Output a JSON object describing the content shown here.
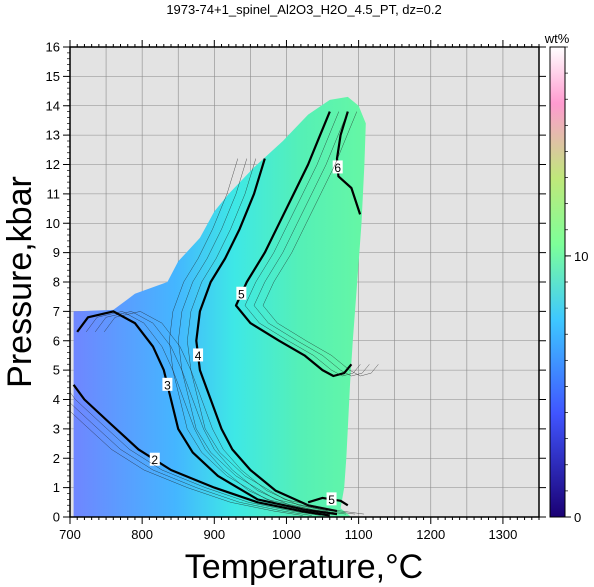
{
  "chart_data": {
    "type": "heatmap",
    "title": "1973-74+1_spinel_Al2O3_H2O_4.5_PT, dz=0.2",
    "xlabel": "Temperature,°C",
    "ylabel": "Pressure,kbar",
    "xlim": [
      700,
      1350
    ],
    "ylim": [
      0,
      16
    ],
    "x_ticks": [
      "700",
      "800",
      "900",
      "1000",
      "1100",
      "1200",
      "1300"
    ],
    "y_ticks": [
      "0",
      "1",
      "2",
      "3",
      "4",
      "5",
      "6",
      "7",
      "8",
      "9",
      "10",
      "11",
      "12",
      "13",
      "14",
      "15",
      "16"
    ],
    "grid": true,
    "background_color": "#e3e3e3",
    "colorbar": {
      "label": "wt%",
      "range": [
        0,
        18
      ],
      "ticks": [
        "0",
        "10"
      ],
      "placement": "right",
      "colors": [
        "#1a0073",
        "#4055ff",
        "#3ec8ff",
        "#7dff99",
        "#bfe87a",
        "#ff9bd0",
        "#ffffff"
      ]
    },
    "field_boundary": [
      [
        705,
        0
      ],
      [
        705,
        7.0
      ],
      [
        760,
        7.05
      ],
      [
        790,
        7.6
      ],
      [
        835,
        8.0
      ],
      [
        850,
        8.7
      ],
      [
        880,
        9.5
      ],
      [
        900,
        10.4
      ],
      [
        920,
        11.0
      ],
      [
        955,
        11.9
      ],
      [
        995,
        12.8
      ],
      [
        1030,
        13.7
      ],
      [
        1060,
        14.2
      ],
      [
        1085,
        14.3
      ],
      [
        1100,
        14.0
      ],
      [
        1110,
        13.4
      ],
      [
        1108,
        12.0
      ],
      [
        1104,
        10.0
      ],
      [
        1098,
        8.0
      ],
      [
        1092,
        6.0
      ],
      [
        1088,
        4.5
      ],
      [
        1085,
        3.0
      ],
      [
        1083,
        2.0
      ],
      [
        1080,
        1.0
      ],
      [
        1075,
        0.3
      ],
      [
        1090,
        0
      ]
    ],
    "contours": [
      {
        "level": 2,
        "label": "2",
        "points": [
          [
            705,
            4.5
          ],
          [
            720,
            4.0
          ],
          [
            755,
            3.2
          ],
          [
            795,
            2.3
          ],
          [
            840,
            1.6
          ],
          [
            900,
            1.0
          ],
          [
            960,
            0.5
          ],
          [
            1020,
            0.2
          ],
          [
            1060,
            0.05
          ]
        ]
      },
      {
        "level": 3,
        "label": "3",
        "points": [
          [
            710,
            6.3
          ],
          [
            725,
            6.8
          ],
          [
            760,
            7.0
          ],
          [
            790,
            6.6
          ],
          [
            815,
            5.8
          ],
          [
            830,
            5.0
          ],
          [
            840,
            4.0
          ],
          [
            850,
            3.0
          ],
          [
            870,
            2.2
          ],
          [
            905,
            1.4
          ],
          [
            960,
            0.6
          ],
          [
            1025,
            0.25
          ],
          [
            1070,
            0.1
          ]
        ]
      },
      {
        "level": 4,
        "label": "4",
        "points": [
          [
            970,
            12.2
          ],
          [
            955,
            11.0
          ],
          [
            935,
            9.8
          ],
          [
            915,
            8.8
          ],
          [
            895,
            8.0
          ],
          [
            880,
            7.0
          ],
          [
            875,
            6.0
          ],
          [
            880,
            5.0
          ],
          [
            895,
            4.0
          ],
          [
            910,
            3.0
          ],
          [
            925,
            2.3
          ],
          [
            950,
            1.6
          ],
          [
            985,
            0.9
          ],
          [
            1030,
            0.4
          ],
          [
            1070,
            0.2
          ]
        ]
      },
      {
        "level": 5,
        "label": "5",
        "points": [
          [
            1060,
            13.8
          ],
          [
            1045,
            12.9
          ],
          [
            1030,
            12.0
          ],
          [
            1010,
            11.0
          ],
          [
            990,
            10.0
          ],
          [
            970,
            9.0
          ],
          [
            945,
            8.0
          ],
          [
            930,
            7.2
          ],
          [
            950,
            6.6
          ],
          [
            990,
            6.0
          ],
          [
            1025,
            5.5
          ],
          [
            1050,
            5.0
          ],
          [
            1065,
            4.8
          ],
          [
            1080,
            4.9
          ],
          [
            1090,
            5.2
          ]
        ]
      },
      {
        "level": 5,
        "label": "5",
        "points": [
          [
            1030,
            0.5
          ],
          [
            1050,
            0.65
          ],
          [
            1075,
            0.55
          ],
          [
            1085,
            0.4
          ]
        ]
      },
      {
        "level": 6,
        "label": "6",
        "points": [
          [
            1085,
            13.8
          ],
          [
            1075,
            13.0
          ],
          [
            1070,
            12.2
          ],
          [
            1072,
            11.6
          ],
          [
            1090,
            11.2
          ],
          [
            1102,
            10.3
          ]
        ]
      }
    ]
  }
}
